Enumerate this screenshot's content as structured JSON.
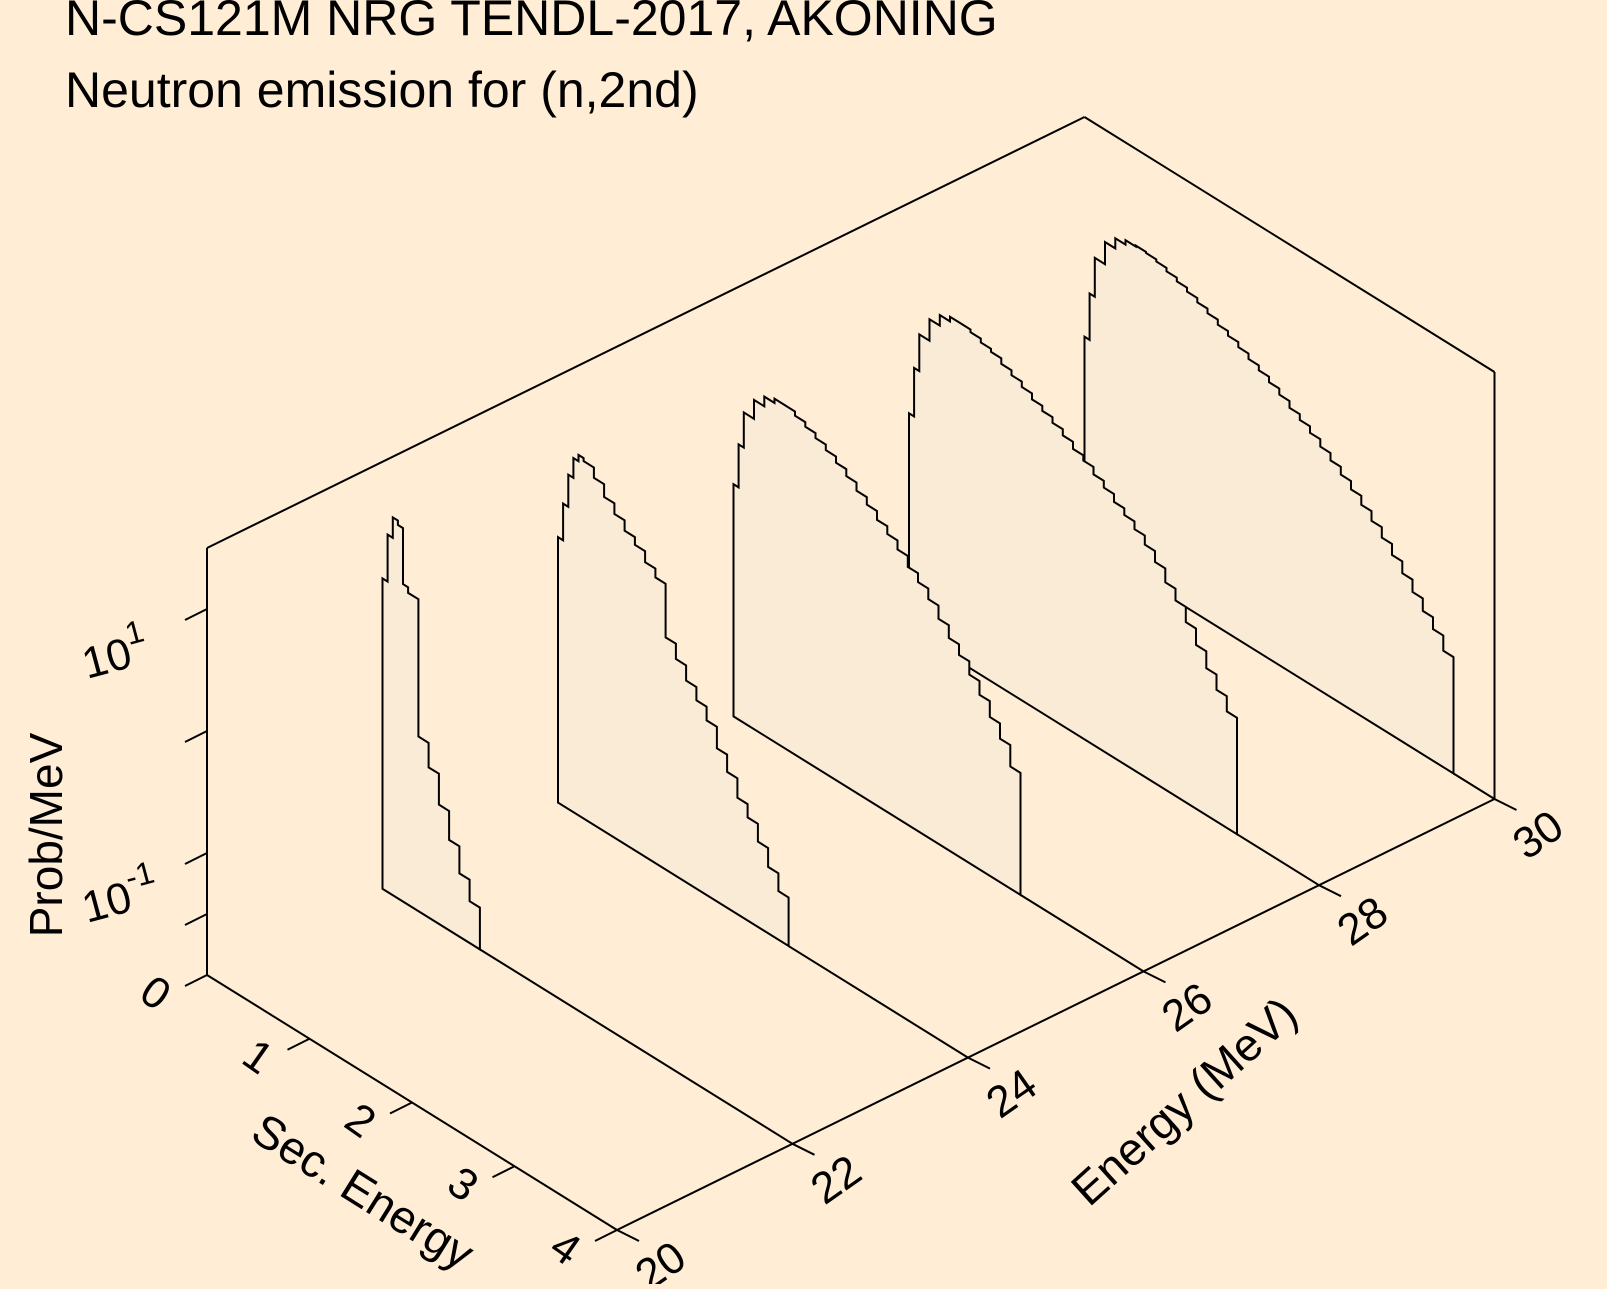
{
  "chart_data": {
    "type": "3d-waterfall",
    "title": "N-CS121M NRG TENDL-2017, AKONING",
    "subtitle": "Neutron emission for (n,2nd)",
    "xlabel": "Sec. Energy",
    "ylabel": "Energy (MeV)",
    "zlabel": "Prob/MeV",
    "x_ticks": [
      "0",
      "1",
      "2",
      "3",
      "4"
    ],
    "y_ticks": [
      "20",
      "22",
      "24",
      "26",
      "28",
      "30"
    ],
    "z_ticks": [
      {
        "base": "10",
        "exp": "1"
      },
      {
        "base": "10",
        "exp": "-1"
      }
    ],
    "xlim": [
      0,
      4
    ],
    "ylim": [
      20,
      30
    ],
    "zscale": "log",
    "colors": {
      "background": "#ffedd5",
      "fill": "#faebd7",
      "line": "#000000"
    },
    "series": [
      {
        "energy": 22,
        "spectrum": [
          [
            0.05,
            3.5
          ],
          [
            0.1,
            8.5
          ],
          [
            0.15,
            12.5
          ],
          [
            0.2,
            11.5
          ],
          [
            0.25,
            4.0
          ],
          [
            0.35,
            3.6
          ],
          [
            0.45,
            0.27
          ],
          [
            0.55,
            0.17
          ],
          [
            0.65,
            0.095
          ],
          [
            0.75,
            0.055
          ],
          [
            0.85,
            0.033
          ],
          [
            0.95,
            0.022
          ]
        ]
      },
      {
        "energy": 24,
        "spectrum": [
          [
            0.05,
            1.5
          ],
          [
            0.1,
            3.0
          ],
          [
            0.15,
            5.5
          ],
          [
            0.2,
            8.0
          ],
          [
            0.25,
            9.0
          ],
          [
            0.35,
            8.5
          ],
          [
            0.45,
            7.0
          ],
          [
            0.55,
            5.5
          ],
          [
            0.65,
            4.5
          ],
          [
            0.75,
            3.7
          ],
          [
            0.85,
            3.2
          ],
          [
            0.95,
            2.6
          ],
          [
            1.05,
            2.2
          ],
          [
            1.15,
            0.8
          ],
          [
            1.25,
            0.6
          ],
          [
            1.35,
            0.45
          ],
          [
            1.45,
            0.35
          ],
          [
            1.55,
            0.27
          ],
          [
            1.65,
            0.18
          ],
          [
            1.75,
            0.13
          ],
          [
            1.85,
            0.09
          ],
          [
            1.95,
            0.07
          ],
          [
            2.05,
            0.05
          ],
          [
            2.15,
            0.035
          ],
          [
            2.25,
            0.025
          ]
        ]
      },
      {
        "energy": 26,
        "spectrum": [
          [
            0.05,
            0.8
          ],
          [
            0.1,
            1.8
          ],
          [
            0.2,
            3.5
          ],
          [
            0.3,
            5.0
          ],
          [
            0.4,
            6.0
          ],
          [
            0.5,
            6.5
          ],
          [
            0.6,
            6.5
          ],
          [
            0.7,
            6.0
          ],
          [
            0.8,
            5.5
          ],
          [
            0.9,
            5.0
          ],
          [
            1.0,
            4.5
          ],
          [
            1.1,
            4.0
          ],
          [
            1.2,
            3.5
          ],
          [
            1.3,
            3.0
          ],
          [
            1.4,
            2.6
          ],
          [
            1.5,
            2.2
          ],
          [
            1.6,
            1.9
          ],
          [
            1.7,
            1.6
          ],
          [
            1.8,
            1.3
          ],
          [
            1.9,
            1.1
          ],
          [
            2.0,
            0.9
          ],
          [
            2.1,
            0.7
          ],
          [
            2.2,
            0.55
          ],
          [
            2.3,
            0.45
          ],
          [
            2.4,
            0.35
          ],
          [
            2.5,
            0.27
          ],
          [
            2.6,
            0.2
          ],
          [
            2.7,
            0.15
          ],
          [
            2.8,
            0.1
          ]
        ]
      },
      {
        "energy": 28,
        "spectrum": [
          [
            0.05,
            0.6
          ],
          [
            0.1,
            1.5
          ],
          [
            0.2,
            3.0
          ],
          [
            0.3,
            4.5
          ],
          [
            0.4,
            5.5
          ],
          [
            0.5,
            6.0
          ],
          [
            0.6,
            6.0
          ],
          [
            0.7,
            5.7
          ],
          [
            0.8,
            5.3
          ],
          [
            0.9,
            5.0
          ],
          [
            1.0,
            4.5
          ],
          [
            1.1,
            4.1
          ],
          [
            1.2,
            3.7
          ],
          [
            1.3,
            3.3
          ],
          [
            1.4,
            3.0
          ],
          [
            1.5,
            2.7
          ],
          [
            1.6,
            2.4
          ],
          [
            1.7,
            2.1
          ],
          [
            1.8,
            1.9
          ],
          [
            1.9,
            1.65
          ],
          [
            2.0,
            1.45
          ],
          [
            2.1,
            1.25
          ],
          [
            2.2,
            1.1
          ],
          [
            2.3,
            0.95
          ],
          [
            2.4,
            0.8
          ],
          [
            2.5,
            0.65
          ],
          [
            2.6,
            0.5
          ],
          [
            2.7,
            0.4
          ],
          [
            2.8,
            0.3
          ],
          [
            2.9,
            0.22
          ],
          [
            3.0,
            0.16
          ],
          [
            3.1,
            0.12
          ],
          [
            3.2,
            0.09
          ]
        ]
      },
      {
        "energy": 30,
        "spectrum": [
          [
            0.05,
            0.5
          ],
          [
            0.1,
            1.2
          ],
          [
            0.2,
            2.5
          ],
          [
            0.3,
            3.8
          ],
          [
            0.4,
            4.6
          ],
          [
            0.5,
            5.0
          ],
          [
            0.6,
            5.1
          ],
          [
            0.7,
            5.0
          ],
          [
            0.8,
            4.8
          ],
          [
            0.9,
            4.5
          ],
          [
            1.0,
            4.2
          ],
          [
            1.1,
            3.9
          ],
          [
            1.2,
            3.6
          ],
          [
            1.3,
            3.3
          ],
          [
            1.4,
            3.0
          ],
          [
            1.5,
            2.75
          ],
          [
            1.6,
            2.5
          ],
          [
            1.7,
            2.25
          ],
          [
            1.8,
            2.05
          ],
          [
            1.9,
            1.85
          ],
          [
            2.0,
            1.65
          ],
          [
            2.1,
            1.45
          ],
          [
            2.2,
            1.3
          ],
          [
            2.3,
            1.15
          ],
          [
            2.4,
            1.0
          ],
          [
            2.5,
            0.87
          ],
          [
            2.6,
            0.75
          ],
          [
            2.7,
            0.64
          ],
          [
            2.8,
            0.54
          ],
          [
            2.9,
            0.45
          ],
          [
            3.0,
            0.37
          ],
          [
            3.1,
            0.3
          ],
          [
            3.2,
            0.24
          ],
          [
            3.3,
            0.19
          ],
          [
            3.4,
            0.15
          ],
          [
            3.5,
            0.12
          ],
          [
            3.6,
            0.09
          ]
        ]
      }
    ]
  }
}
